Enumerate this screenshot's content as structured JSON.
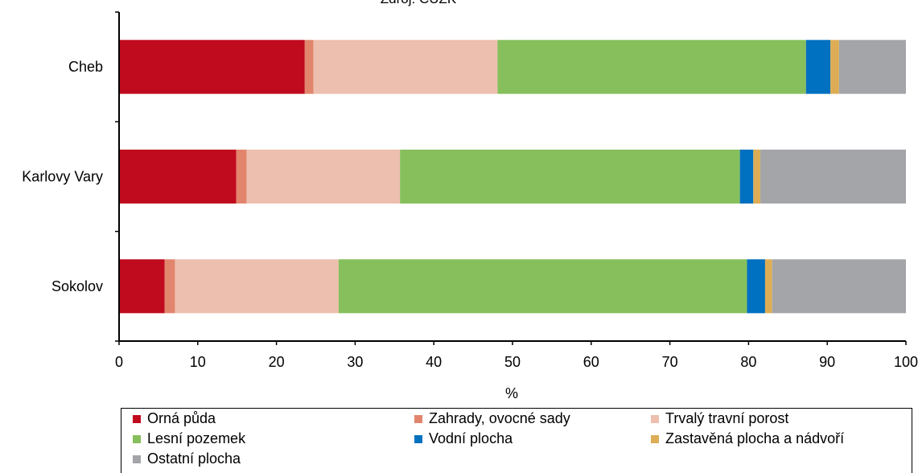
{
  "chart_data": {
    "type": "bar",
    "orientation": "horizontal",
    "stacked": true,
    "title": "Zdroj: ČÚZK",
    "xlabel": "%",
    "ylabel": "",
    "xlim": [
      0,
      100
    ],
    "xticks": [
      "0",
      "10",
      "20",
      "30",
      "40",
      "50",
      "60",
      "70",
      "80",
      "90",
      "100"
    ],
    "categories": [
      "Cheb",
      "Karlovy Vary",
      "Sokolov"
    ],
    "grid": false,
    "legend_position": "bottom",
    "series": [
      {
        "name": "Orná půda",
        "color": "#C00A1E",
        "values": [
          23.6,
          14.9,
          5.8
        ]
      },
      {
        "name": "Zahrady, ovocné sady",
        "color": "#E2856D",
        "values": [
          1.1,
          1.3,
          1.3
        ]
      },
      {
        "name": "Trvalý travní porost",
        "color": "#EDBFAE",
        "values": [
          23.4,
          19.5,
          20.8
        ]
      },
      {
        "name": "Lesní pozemek",
        "color": "#86BF5C",
        "values": [
          39.2,
          43.2,
          51.9
        ]
      },
      {
        "name": "Vodní plocha",
        "color": "#0070C0",
        "values": [
          3.1,
          1.7,
          2.3
        ]
      },
      {
        "name": "Zastavěná plocha a nádvoří",
        "color": "#DDAD55",
        "values": [
          1.1,
          0.9,
          0.9
        ]
      },
      {
        "name": "Ostatní plocha",
        "color": "#A3A5A9",
        "values": [
          8.5,
          18.5,
          17.0
        ]
      }
    ]
  }
}
